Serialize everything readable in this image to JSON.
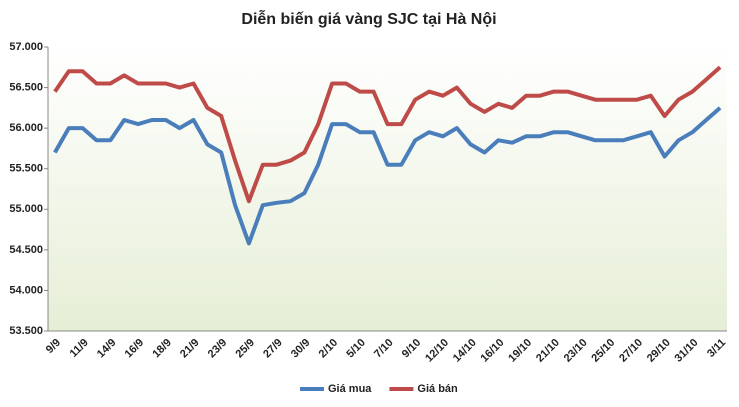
{
  "chart_data": {
    "type": "line",
    "title": "Diễn biến giá vàng SJC tại Hà Nội",
    "categories": [
      "9/9",
      null,
      "11/9",
      null,
      "14/9",
      null,
      "16/9",
      null,
      "18/9",
      null,
      "21/9",
      null,
      "23/9",
      null,
      "25/9",
      null,
      "27/9",
      null,
      "30/9",
      null,
      "2/10",
      null,
      "5/10",
      null,
      "7/10",
      null,
      "9/10",
      null,
      "12/10",
      null,
      "14/10",
      null,
      "16/10",
      null,
      "19/10",
      null,
      "21/10",
      null,
      "23/10",
      null,
      "25/10",
      null,
      "27/10",
      null,
      "29/10",
      null,
      "31/10",
      null,
      "3/11"
    ],
    "series": [
      {
        "name": "Giá mua",
        "color": "#4a7ebb",
        "values": [
          55700,
          56000,
          56000,
          55850,
          55850,
          56100,
          56050,
          56100,
          56100,
          56000,
          56100,
          55800,
          55700,
          55050,
          54580,
          55050,
          55080,
          55100,
          55200,
          55550,
          56050,
          56050,
          55950,
          55950,
          55550,
          55550,
          55850,
          55950,
          55900,
          56000,
          55800,
          55700,
          55850,
          55820,
          55900,
          55900,
          55950,
          55950,
          55900,
          55850,
          55850,
          55850,
          55900,
          55950,
          55650,
          55850,
          55950,
          56100,
          56250
        ]
      },
      {
        "name": "Giá bán",
        "color": "#be4b48",
        "values": [
          56450,
          56700,
          56700,
          56550,
          56550,
          56650,
          56550,
          56550,
          56550,
          56500,
          56550,
          56250,
          56150,
          55600,
          55100,
          55550,
          55550,
          55600,
          55700,
          56050,
          56550,
          56550,
          56450,
          56450,
          56050,
          56050,
          56350,
          56450,
          56400,
          56500,
          56300,
          56200,
          56300,
          56250,
          56400,
          56400,
          56450,
          56450,
          56400,
          56350,
          56350,
          56350,
          56350,
          56400,
          56150,
          56350,
          56450,
          56600,
          56750
        ]
      }
    ],
    "ylim": [
      53500,
      57000
    ],
    "yticks": [
      {
        "value": 53500,
        "label": "53.500"
      },
      {
        "value": 54000,
        "label": "54.000"
      },
      {
        "value": 54500,
        "label": "54.500"
      },
      {
        "value": 55000,
        "label": "55.000"
      },
      {
        "value": 55500,
        "label": "55.500"
      },
      {
        "value": 56000,
        "label": "56.000"
      },
      {
        "value": 56500,
        "label": "56.500"
      },
      {
        "value": 57000,
        "label": "57.000"
      }
    ],
    "grid": false,
    "legend": "bottom"
  }
}
